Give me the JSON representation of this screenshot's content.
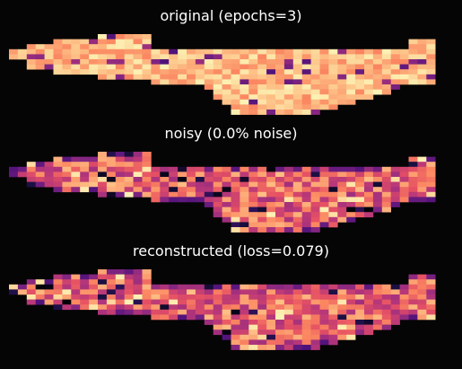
{
  "figure": {
    "background": "#050505"
  },
  "chart_data": [
    {
      "type": "heatmap",
      "title": "original (epochs=3)",
      "colormap": "magma",
      "seed": 17,
      "n_cols": 48,
      "n_rows": 16,
      "base_row_range": [
        3,
        10
      ],
      "extension_start_col": 22,
      "extension_row_max": 16,
      "value_range": [
        0.45,
        0.98
      ]
    },
    {
      "type": "heatmap",
      "title": "noisy (0.0% noise)",
      "colormap": "magma",
      "seed": 53,
      "n_cols": 48,
      "n_rows": 16,
      "base_row_range": [
        3,
        10
      ],
      "extension_start_col": 22,
      "extension_row_max": 16,
      "value_range": [
        0.02,
        0.97
      ]
    },
    {
      "type": "heatmap",
      "title": "reconstructed (loss=0.079)",
      "colormap": "magma",
      "seed": 91,
      "n_cols": 48,
      "n_rows": 16,
      "base_row_range": [
        3,
        10
      ],
      "extension_start_col": 22,
      "extension_row_max": 16,
      "value_range": [
        0.02,
        0.97
      ]
    }
  ]
}
